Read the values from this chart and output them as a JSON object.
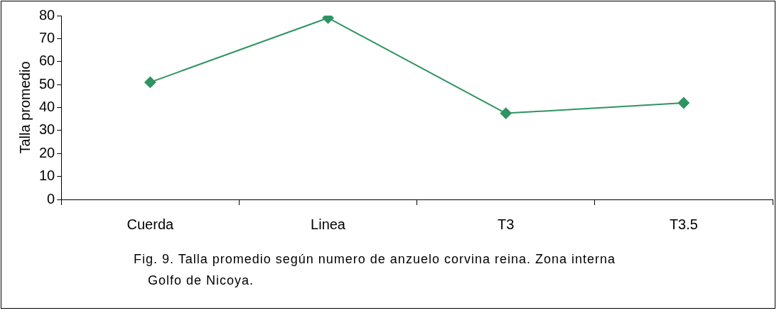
{
  "chart_data": {
    "type": "line",
    "ylabel": "Talla promedio",
    "categories": [
      "Cuerda",
      "Linea",
      "T3",
      "T3.5"
    ],
    "series": [
      {
        "color": "#2e9461",
        "values": [
          51,
          79,
          37.5,
          42
        ]
      }
    ],
    "ylim": [
      0,
      80
    ],
    "yticks": [
      0,
      10,
      20,
      30,
      40,
      50,
      60,
      70,
      80
    ],
    "grid": false,
    "legend": false,
    "marker": "diamond",
    "line_style": "solid",
    "annotations": [
      "Fig. 9. Talla promedio según numero de anzuelo corvina reina. Zona interna Golfo de Nicoya."
    ]
  }
}
